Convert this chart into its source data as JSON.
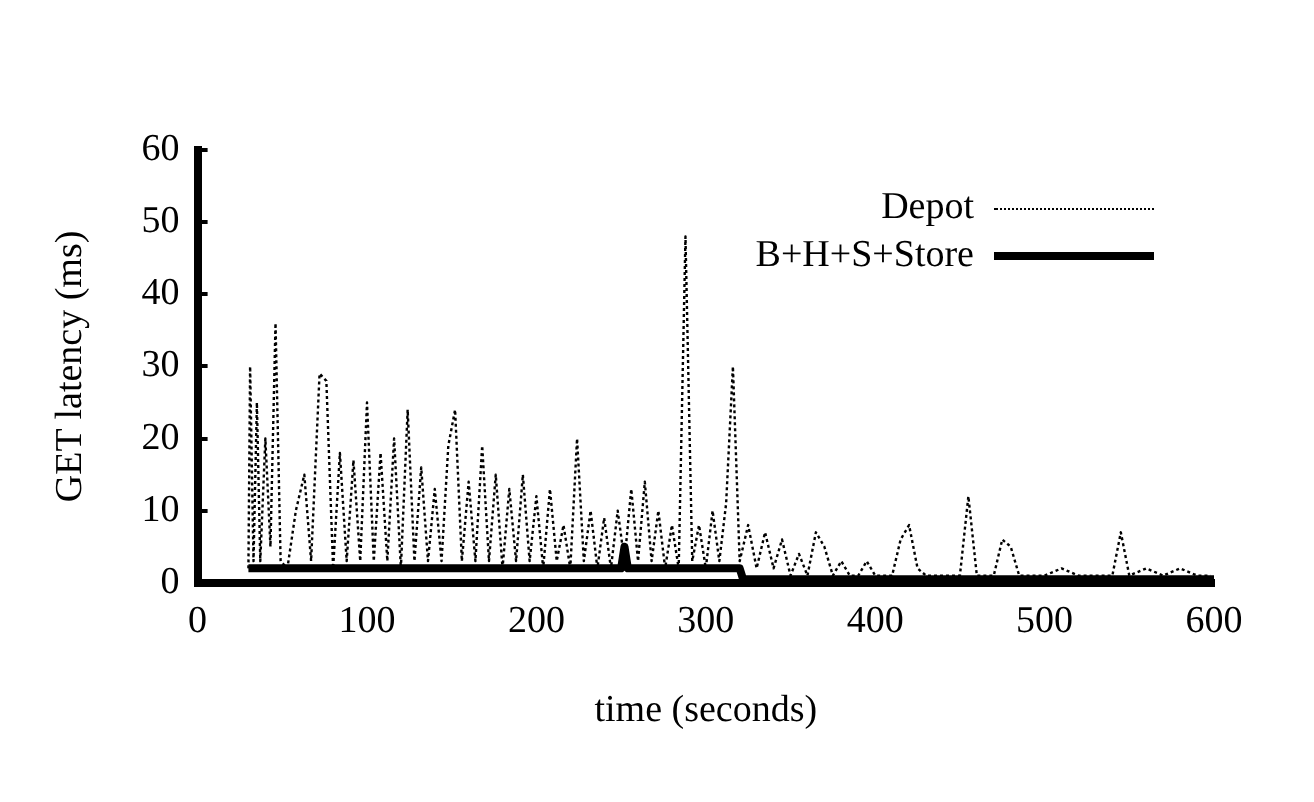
{
  "chart_data": {
    "type": "line",
    "xlabel": "time (seconds)",
    "ylabel": "GET latency (ms)",
    "xlim": [
      0,
      600
    ],
    "xticks": [
      0,
      100,
      200,
      300,
      400,
      500,
      600
    ],
    "ylim": [
      0,
      60
    ],
    "yticks": [
      0,
      10,
      20,
      30,
      40,
      50,
      60
    ],
    "grid": false,
    "legend": "top right",
    "marker": "none",
    "series": [
      {
        "name": "Depot",
        "color": "#000000",
        "line_style": "dotted",
        "x": [
          30,
          31,
          33,
          35,
          37,
          40,
          43,
          46,
          49,
          53,
          58,
          63,
          67,
          72,
          76,
          80,
          84,
          88,
          92,
          96,
          100,
          104,
          108,
          112,
          116,
          120,
          124,
          128,
          132,
          136,
          140,
          144,
          148,
          152,
          156,
          160,
          164,
          168,
          172,
          176,
          180,
          184,
          188,
          192,
          196,
          200,
          204,
          208,
          212,
          216,
          220,
          224,
          228,
          232,
          236,
          240,
          244,
          248,
          252,
          256,
          260,
          264,
          268,
          272,
          276,
          280,
          284,
          288,
          292,
          296,
          300,
          304,
          308,
          312,
          316,
          320,
          325,
          330,
          335,
          340,
          345,
          350,
          355,
          360,
          365,
          370,
          375,
          380,
          385,
          390,
          395,
          400,
          410,
          415,
          420,
          425,
          430,
          440,
          450,
          455,
          460,
          470,
          475,
          480,
          485,
          500,
          510,
          520,
          530,
          540,
          545,
          550,
          560,
          570,
          580,
          590,
          598
        ],
        "values": [
          2,
          30,
          3,
          25,
          3,
          20,
          5,
          36,
          3,
          2,
          10,
          15,
          3,
          29,
          28,
          2,
          18,
          3,
          17,
          3,
          25,
          3,
          18,
          3,
          20,
          2,
          24,
          3,
          16,
          3,
          13,
          3,
          19,
          24,
          3,
          14,
          3,
          19,
          3,
          15,
          2,
          13,
          3,
          15,
          3,
          12,
          2,
          13,
          3,
          8,
          2,
          20,
          3,
          10,
          2,
          9,
          2,
          10,
          3,
          13,
          3,
          14,
          3,
          10,
          2,
          8,
          2,
          48,
          3,
          8,
          2,
          10,
          3,
          11,
          30,
          3,
          8,
          2,
          7,
          2,
          6,
          1,
          4,
          1,
          7,
          5,
          1,
          3,
          1,
          1,
          3,
          1,
          1,
          6,
          8,
          2,
          1,
          1,
          1,
          12,
          1,
          1,
          6,
          5,
          1,
          1,
          2,
          1,
          1,
          1,
          7,
          1,
          2,
          1,
          2,
          1,
          1
        ]
      },
      {
        "name": "B+H+S+Store",
        "color": "#000000",
        "line_style": "solid",
        "x": [
          30,
          250,
          252,
          254,
          320,
          322,
          600
        ],
        "values": [
          2,
          2,
          5,
          2,
          2,
          0.5,
          0.5
        ]
      }
    ]
  }
}
